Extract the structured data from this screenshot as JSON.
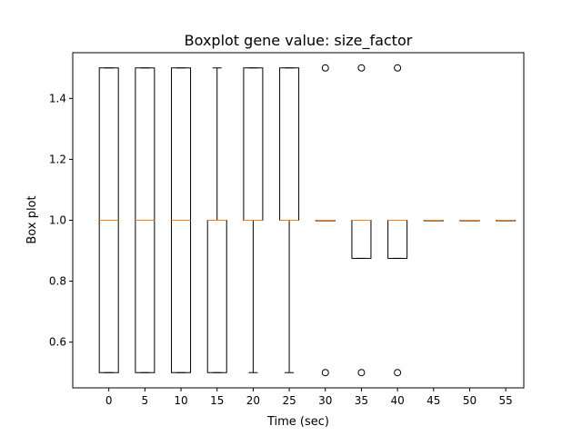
{
  "chart_data": {
    "type": "boxplot",
    "title": "Boxplot gene value: size_factor",
    "xlabel": "Time (sec)",
    "ylabel": "Box plot",
    "ylim": [
      0.45,
      1.55
    ],
    "xlim": [
      -5,
      57.5
    ],
    "grid": false,
    "yticks": [
      0.6,
      0.8,
      1.0,
      1.2,
      1.4
    ],
    "ytick_labels": [
      "0.6",
      "0.8",
      "1.0",
      "1.2",
      "1.4"
    ],
    "box_color": "#000000",
    "median_color": "#ff7f0e",
    "boxes": [
      {
        "x": 0,
        "label": "0",
        "whislo": 0.5,
        "q1": 0.5,
        "med": 1.0,
        "q3": 1.5,
        "whishi": 1.5,
        "fliers": []
      },
      {
        "x": 5,
        "label": "5",
        "whislo": 0.5,
        "q1": 0.5,
        "med": 1.0,
        "q3": 1.5,
        "whishi": 1.5,
        "fliers": []
      },
      {
        "x": 10,
        "label": "10",
        "whislo": 0.5,
        "q1": 0.5,
        "med": 1.0,
        "q3": 1.5,
        "whishi": 1.5,
        "fliers": []
      },
      {
        "x": 15,
        "label": "15",
        "whislo": 0.5,
        "q1": 0.5,
        "med": 1.0,
        "q3": 1.0,
        "whishi": 1.5,
        "fliers": []
      },
      {
        "x": 20,
        "label": "20",
        "whislo": 0.5,
        "q1": 1.0,
        "med": 1.0,
        "q3": 1.5,
        "whishi": 1.5,
        "fliers": []
      },
      {
        "x": 25,
        "label": "25",
        "whislo": 0.5,
        "q1": 1.0,
        "med": 1.0,
        "q3": 1.5,
        "whishi": 1.5,
        "fliers": []
      },
      {
        "x": 30,
        "label": "30",
        "whislo": 1.0,
        "q1": 1.0,
        "med": 1.0,
        "q3": 1.0,
        "whishi": 1.0,
        "fliers": [
          0.5,
          1.5
        ]
      },
      {
        "x": 35,
        "label": "35",
        "whislo": 0.875,
        "q1": 0.875,
        "med": 1.0,
        "q3": 1.0,
        "whishi": 1.0,
        "fliers": [
          0.5,
          1.5
        ]
      },
      {
        "x": 40,
        "label": "40",
        "whislo": 0.875,
        "q1": 0.875,
        "med": 1.0,
        "q3": 1.0,
        "whishi": 1.0,
        "fliers": [
          0.5,
          1.5
        ]
      },
      {
        "x": 45,
        "label": "45",
        "whislo": 1.0,
        "q1": 1.0,
        "med": 1.0,
        "q3": 1.0,
        "whishi": 1.0,
        "fliers": []
      },
      {
        "x": 50,
        "label": "50",
        "whislo": 1.0,
        "q1": 1.0,
        "med": 1.0,
        "q3": 1.0,
        "whishi": 1.0,
        "fliers": []
      },
      {
        "x": 55,
        "label": "55",
        "whislo": 1.0,
        "q1": 1.0,
        "med": 1.0,
        "q3": 1.0,
        "whishi": 1.0,
        "fliers": []
      }
    ]
  }
}
